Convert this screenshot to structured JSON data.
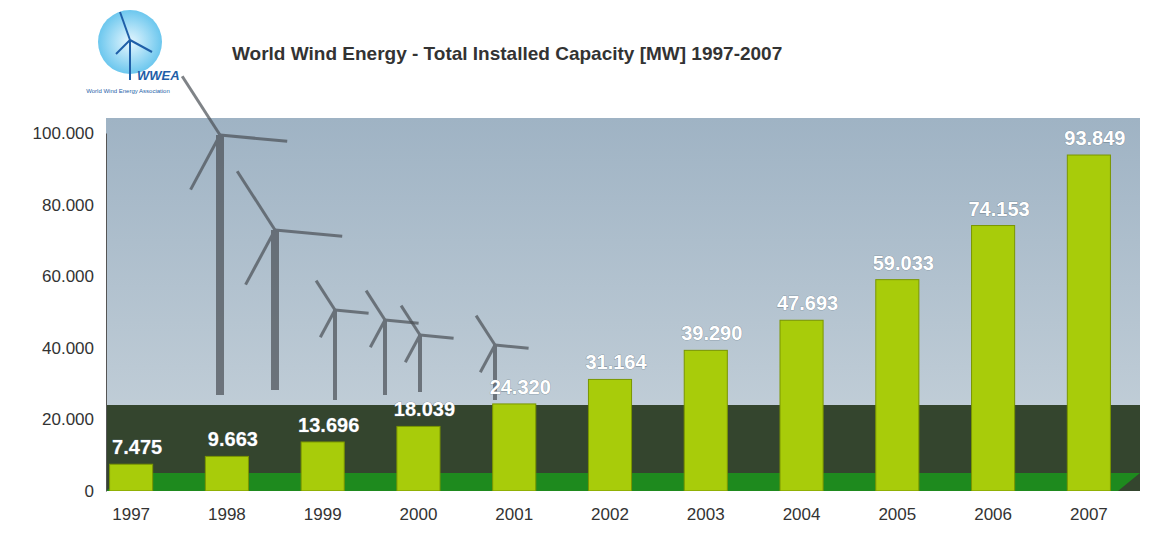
{
  "chart_data": {
    "type": "bar",
    "title": "World Wind Energy - Total Installed Capacity [MW] 1997-2007",
    "annotations": [
      "WWEA",
      "World Wind Energy Association"
    ],
    "categories": [
      "1997",
      "1998",
      "1999",
      "2000",
      "2001",
      "2002",
      "2003",
      "2004",
      "2005",
      "2006",
      "2007"
    ],
    "values": [
      7475,
      9663,
      13696,
      18039,
      24320,
      31164,
      39290,
      47693,
      59033,
      74153,
      93849
    ],
    "value_labels": [
      "7.475",
      "9.663",
      "13.696",
      "18.039",
      "24.320",
      "31.164",
      "39.290",
      "47.693",
      "59.033",
      "74.153",
      "93.849"
    ],
    "data_labels": true,
    "color": "#a8cc0a",
    "ylim": [
      0,
      100000
    ],
    "yticks": [
      0,
      {
        "value": 20000,
        "label": "20.000"
      },
      {
        "value": 40000,
        "label": "40.000"
      },
      {
        "value": 60000,
        "label": "60.000"
      },
      {
        "value": 80000,
        "label": "80.000"
      },
      {
        "value": 100000,
        "label": "100.000"
      }
    ]
  }
}
